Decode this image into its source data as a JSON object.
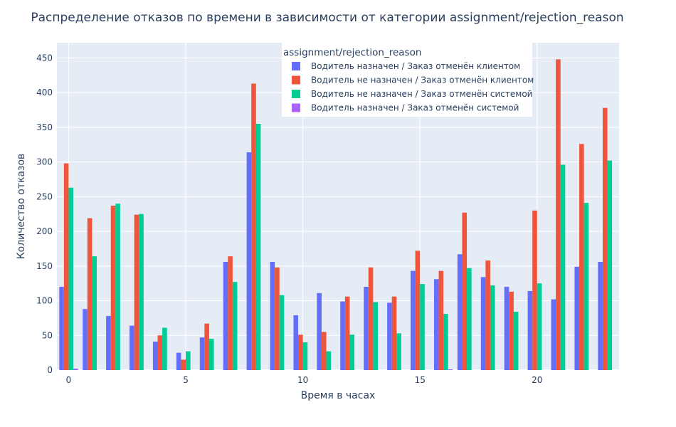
{
  "chart_data": {
    "type": "bar",
    "title": "Распределение отказов по времени в зависимости от категории assignment/rejection_reason",
    "xlabel": "Время в часах",
    "ylabel": "Количество отказов",
    "x": [
      0,
      1,
      2,
      3,
      4,
      5,
      6,
      7,
      8,
      9,
      10,
      11,
      12,
      13,
      14,
      15,
      16,
      17,
      18,
      19,
      20,
      21,
      22,
      23
    ],
    "x_ticks": [
      0,
      5,
      10,
      15,
      20
    ],
    "y_ticks": [
      0,
      50,
      100,
      150,
      200,
      250,
      300,
      350,
      400,
      450
    ],
    "ylim": [
      0,
      472
    ],
    "xlim": [
      -0.5,
      23.5
    ],
    "grid": true,
    "legend": {
      "title": "assignment/rejection_reason",
      "placement": "top-center"
    },
    "series": [
      {
        "name": "Водитель назначен / Заказ отменён клиентом",
        "color": "#636efa",
        "values": [
          120,
          88,
          78,
          64,
          41,
          25,
          47,
          156,
          314,
          156,
          79,
          111,
          99,
          120,
          97,
          143,
          131,
          167,
          134,
          120,
          114,
          102,
          149,
          156
        ]
      },
      {
        "name": "Водитель не назначен / Заказ отменён клиентом",
        "color": "#ef553b",
        "values": [
          298,
          219,
          237,
          224,
          50,
          15,
          67,
          164,
          413,
          148,
          51,
          55,
          106,
          148,
          106,
          172,
          143,
          227,
          158,
          113,
          230,
          448,
          326,
          378
        ]
      },
      {
        "name": "Водитель не назначен / Заказ отменён системой",
        "color": "#00cc96",
        "values": [
          263,
          164,
          240,
          225,
          61,
          27,
          45,
          127,
          355,
          108,
          40,
          27,
          51,
          98,
          53,
          124,
          81,
          147,
          122,
          84,
          125,
          296,
          241,
          302
        ]
      },
      {
        "name": "Водитель назначен / Заказ отменён системой",
        "color": "#ab63fa",
        "values": [
          2,
          0,
          0,
          0,
          0,
          0,
          0,
          0,
          0,
          0,
          0,
          0,
          0,
          0,
          0,
          0,
          1,
          0,
          0,
          0,
          0,
          0,
          0,
          0
        ]
      }
    ]
  }
}
